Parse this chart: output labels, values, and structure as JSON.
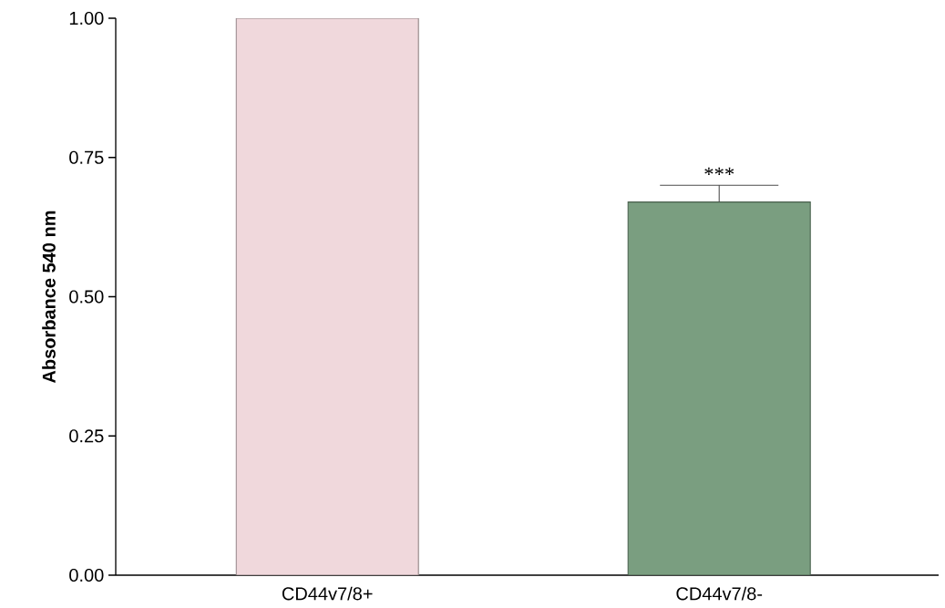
{
  "chart_data": {
    "type": "bar",
    "ylabel": "Absorbance 540 nm",
    "categories": [
      "CD44v7/8+",
      "CD44v7/8-"
    ],
    "values": [
      1.0,
      0.67
    ],
    "errors": [
      null,
      [
        0.67,
        0.7
      ]
    ],
    "colors": [
      "#f0d8dc",
      "#7a9e80"
    ],
    "ylim": [
      0,
      1.0
    ],
    "yticks": [
      {
        "value": 0,
        "label": "0.00"
      },
      {
        "value": 0.25,
        "label": "0.25"
      },
      {
        "value": 0.5,
        "label": "0.50"
      },
      {
        "value": 0.75,
        "label": "0.75"
      },
      {
        "value": 1.0,
        "label": "1.00"
      }
    ],
    "annotations": [
      "***"
    ],
    "grid": false
  }
}
